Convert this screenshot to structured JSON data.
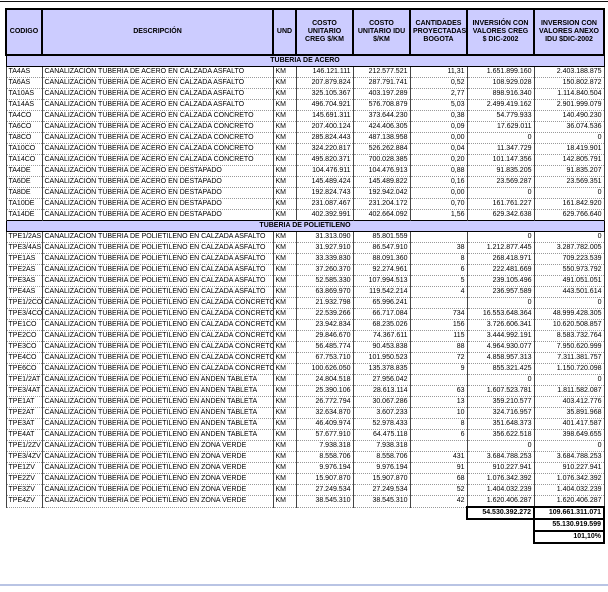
{
  "table": {
    "columns": [
      "CODIGO",
      "DESCRIPCIÓN",
      "UND",
      "COSTO UNITARIO CREG  $/KM",
      "COSTO UNITARIO IDU $/KM",
      "CANTIDADES PROYECTADAS BOGOTA",
      "INVERSIÓN CON VALORES CREG  $ DIC-2002",
      "INVERSION CON VALORES ANEXO IDU $DIC-2002"
    ],
    "sections": [
      {
        "title": "TUBERIA DE ACERO",
        "rows": [
          [
            "TA4AS",
            "CANALIZACIÓN TUBERIA DE ACERO EN CALZADA ASFALTO",
            "KM",
            "146.121.111",
            "212.577.521",
            "11,31",
            "1.651.899.160",
            "2.403.188.875"
          ],
          [
            "TA6AS",
            "CANALIZACIÓN TUBERIA DE ACERO EN CALZADA ASFALTO",
            "KM",
            "207.879.824",
            "287.791.741",
            "0,52",
            "108.929.028",
            "150.802.872"
          ],
          [
            "TA10AS",
            "CANALIZACIÓN TUBERIA DE ACERO EN CALZADA ASFALTO",
            "KM",
            "325.105.367",
            "403.197.289",
            "2,77",
            "898.916.340",
            "1.114.840.504"
          ],
          [
            "TA14AS",
            "CANALIZACIÓN TUBERIA DE ACERO EN CALZADA ASFALTO",
            "KM",
            "496.704.921",
            "576.708.879",
            "5,03",
            "2.499.419.162",
            "2.901.999.079"
          ],
          [
            "TA4CO",
            "CANALIZACIÓN TUBERIA DE ACERO EN CALZADA CONCRETO",
            "KM",
            "145.691.311",
            "373.644.230",
            "0,38",
            "54.779.933",
            "140.490.230"
          ],
          [
            "TA6CO",
            "CANALIZACIÓN TUBERIA DE ACERO EN CALZADA CONCRETO",
            "KM",
            "207.400.124",
            "424.406.305",
            "0,09",
            "17.629.011",
            "36.074.536"
          ],
          [
            "TA8CO",
            "CANALIZACIÓN TUBERIA DE ACERO EN CALZADA CONCRETO",
            "KM",
            "285.824.443",
            "487.138.958",
            "0,00",
            "0",
            "0"
          ],
          [
            "TA10CO",
            "CANALIZACIÓN TUBERIA DE ACERO EN CALZADA CONCRETO",
            "KM",
            "324.220.817",
            "526.262.884",
            "0,04",
            "11.347.729",
            "18.419.901"
          ],
          [
            "TA14CO",
            "CANALIZACIÓN TUBERIA DE ACERO EN CALZADA CONCRETO",
            "KM",
            "495.820.371",
            "700.028.385",
            "0,20",
            "101.147.356",
            "142.805.791"
          ],
          [
            "TA4DE",
            "CANALIZACIÓN TUBERIA DE ACERO EN DESTAPADO",
            "KM",
            "104.476.911",
            "104.476.913",
            "0,88",
            "91.835.205",
            "91.835.207"
          ],
          [
            "TA6DE",
            "CANALIZACIÓN TUBERIA DE ACERO EN DESTAPADO",
            "KM",
            "145.489.424",
            "145.489.822",
            "0,16",
            "23.569.287",
            "23.569.351"
          ],
          [
            "TA8DE",
            "CANALIZACIÓN TUBERIA DE ACERO EN DESTAPADO",
            "KM",
            "192.824.743",
            "192.942.042",
            "0,00",
            "0",
            "0"
          ],
          [
            "TA10DE",
            "CANALIZACIÓN TUBERIA DE ACERO EN DESTAPADO",
            "KM",
            "231.087.467",
            "231.204.172",
            "0,70",
            "161.761.227",
            "161.842.920"
          ],
          [
            "TA14DE",
            "CANALIZACIÓN TUBERIA DE ACERO EN DESTAPADO",
            "KM",
            "402.392.991",
            "402.664.092",
            "1,56",
            "629.342.638",
            "629.766.640"
          ]
        ]
      },
      {
        "title": "TUBERIA DE POLIETILENO",
        "rows": [
          [
            "TPE1/2AS",
            "CANALIZACION TUBERIA DE POLIETILENO EN CALZADA ASFALTO",
            "KM",
            "31.313.090",
            "85.801.559",
            "",
            "0",
            "0"
          ],
          [
            "TPE3/4AS",
            "CANALIZACION TUBERIA DE POLIETILENO EN CALZADA ASFALTO",
            "KM",
            "31.927.910",
            "86.547.910",
            "38",
            "1.212.877.445",
            "3.287.782.005"
          ],
          [
            "TPE1AS",
            "CANALIZACION TUBERIA DE POLIETILENO EN CALZADA ASFALTO",
            "KM",
            "33.339.830",
            "88.091.360",
            "8",
            "268.418.971",
            "709.223.539"
          ],
          [
            "TPE2AS",
            "CANALIZACION TUBERIA DE POLIETILENO EN CALZADA ASFALTO",
            "KM",
            "37.260.370",
            "92.274.961",
            "6",
            "222.481.669",
            "550.973.792"
          ],
          [
            "TPE3AS",
            "CANALIZACION TUBERIA DE POLIETILENO EN CALZADA ASFALTO",
            "KM",
            "52.585.330",
            "107.994.513",
            "5",
            "239.105.496",
            "491.051.051"
          ],
          [
            "TPE4AS",
            "CANALIZACION TUBERIA DE POLIETILENO EN CALZADA ASFALTO",
            "KM",
            "63.869.970",
            "119.542.214",
            "4",
            "236.957.589",
            "443.501.614"
          ],
          [
            "TPE1/2CO",
            "CANALIZACION TUBERIA DE POLIETILENO EN CALZADA CONCRETO",
            "KM",
            "21.932.798",
            "65.996.241",
            "",
            "0",
            "0"
          ],
          [
            "TPE3/4CO",
            "CANALIZACION TUBERIA DE POLIETILENO EN CALZADA CONCRETO",
            "KM",
            "22.539.266",
            "66.717.084",
            "734",
            "16.553.648.364",
            "48.999.428.305"
          ],
          [
            "TPE1CO",
            "CANALIZACION TUBERIA DE POLIETILENO EN CALZADA CONCRETO",
            "KM",
            "23.942.834",
            "68.235.026",
            "156",
            "3.726.606.341",
            "10.620.508.857"
          ],
          [
            "TPE2CO",
            "CANALIZACION TUBERIA DE POLIETILENO EN CALZADA CONCRETO",
            "KM",
            "29.846.670",
            "74.367.611",
            "115",
            "3.444.992.191",
            "8.583.732.764"
          ],
          [
            "TPE3CO",
            "CANALIZACION TUBERIA DE POLIETILENO EN CALZADA CONCRETO",
            "KM",
            "56.485.774",
            "90.453.838",
            "88",
            "4.964.930.077",
            "7.950.620.999"
          ],
          [
            "TPE4CO",
            "CANALIZACION TUBERIA DE POLIETILENO EN CALZADA CONCRETO",
            "KM",
            "67.753.710",
            "101.950.523",
            "72",
            "4.858.957.313",
            "7.311.381.757"
          ],
          [
            "TPE6CO",
            "CANALIZACION TUBERIA DE POLIETILENO EN CALZADA CONCRETO",
            "KM",
            "100.626.050",
            "135.378.835",
            "9",
            "855.321.425",
            "1.150.720.098"
          ],
          [
            "TPE1/2AT",
            "CANALIZACION TUBERIA DE POLIETILENO EN ANDEN TABLETA",
            "KM",
            "24.804.518",
            "27.956.042",
            "",
            "0",
            "0"
          ],
          [
            "TPE3/4AT",
            "CANALIZACION TUBERIA DE POLIETILENO EN ANDEN TABLETA",
            "KM",
            "25.390.106",
            "28.613.114",
            "63",
            "1.607.523.781",
            "1.811.582.087"
          ],
          [
            "TPE1AT",
            "CANALIZACION TUBERIA DE POLIETILENO EN ANDEN TABLETA",
            "KM",
            "26.772.794",
            "30.067.286",
            "13",
            "359.210.577",
            "403.412.776"
          ],
          [
            "TPE2AT",
            "CANALIZACION TUBERIA DE POLIETILENO EN ANDEN TABLETA",
            "KM",
            "32.634.870",
            "3.607.233",
            "10",
            "324.716.957",
            "35.891.968"
          ],
          [
            "TPE3AT",
            "CANALIZACION TUBERIA DE POLIETILENO EN ANDEN TABLETA",
            "KM",
            "46.409.974",
            "52.978.433",
            "8",
            "351.648.373",
            "401.417.587"
          ],
          [
            "TPE4AT",
            "CANALIZACION TUBERIA DE POLIETILENO EN ANDEN TABLETA",
            "KM",
            "57.677.910",
            "64.475.118",
            "6",
            "356.622.518",
            "398.649.655"
          ],
          [
            "TPE1/2ZV",
            "CANALIZACION TUBERIA DE POLIETILENO EN ZONA VERDE",
            "KM",
            "7.938.318",
            "7.938.318",
            "",
            "0",
            "0"
          ],
          [
            "TPE3/4ZV",
            "CANALIZACION TUBERIA DE POLIETILENO EN ZONA VERDE",
            "KM",
            "8.558.706",
            "8.558.706",
            "431",
            "3.684.788.253",
            "3.684.788.253"
          ],
          [
            "TPE1ZV",
            "CANALIZACION TUBERIA DE POLIETILENO EN ZONA VERDE",
            "KM",
            "9.976.194",
            "9.976.194",
            "91",
            "910.227.941",
            "910.227.941"
          ],
          [
            "TPE2ZV",
            "CANALIZACION TUBERIA DE POLIETILENO EN ZONA VERDE",
            "KM",
            "15.907.870",
            "15.907.870",
            "68",
            "1.076.342.392",
            "1.076.342.392"
          ],
          [
            "TPE3ZV",
            "CANALIZACION TUBERIA DE POLIETILENO EN ZONA VERDE",
            "KM",
            "27.249.534",
            "27.249.534",
            "52",
            "1.404.032.239",
            "1.404.032.239"
          ],
          [
            "TPE4ZV",
            "CANALIZACION TUBERIA DE POLIETILENO EN ZONA VERDE",
            "KM",
            "38.545.310",
            "38.545.310",
            "42",
            "1.620.406.287",
            "1.620.406.287"
          ]
        ]
      }
    ],
    "totals": {
      "creg_total": "54.530.392.272",
      "idu_total": "109.661.311.071",
      "idu_secondary_total": "55.130.919.599",
      "percentage": "101,10%"
    },
    "colors": {
      "header_fill": "#ccccff",
      "row_fill": "#ffffff",
      "border": "#000000"
    }
  }
}
